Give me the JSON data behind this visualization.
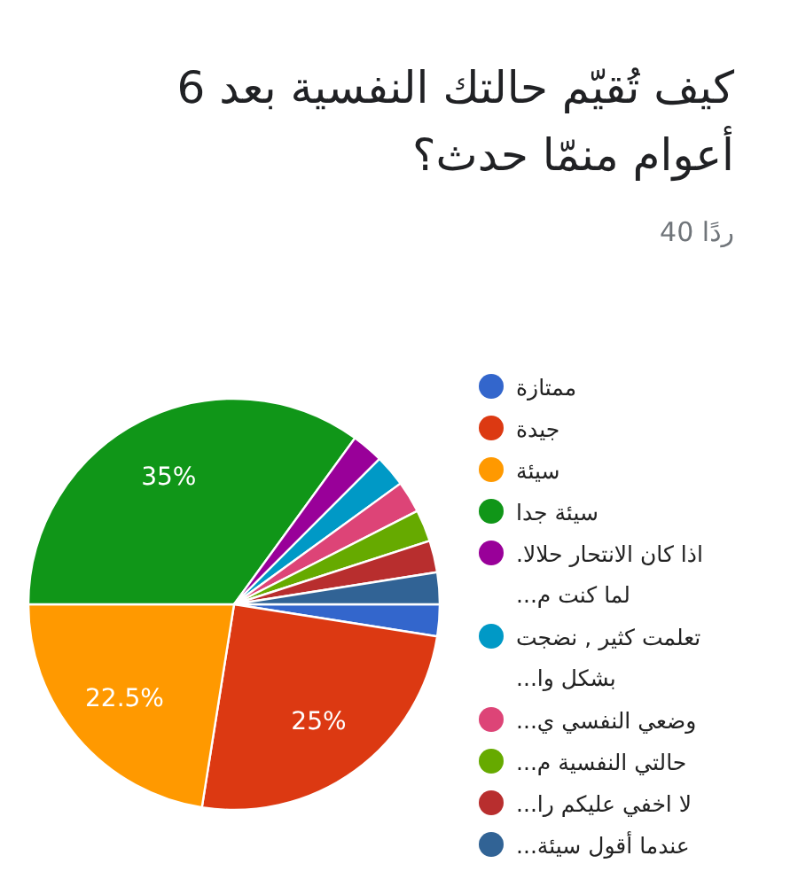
{
  "chart_data": {
    "type": "pie",
    "title": "كيف تُقيّم حالتك النفسية بعد 6 أعوام منمّا حدث؟",
    "subtitle": "40 ردًا",
    "categories": [
      "ممتازة",
      "جيدة",
      "سيئة",
      "سيئة جدا",
      "اذا كان الانتحار حلالا. لما كنت م...",
      "تعلمت كثير , نضجت بشكل وا...",
      "وضعي النفسي ي...",
      "حالتي النفسية م...",
      "لا اخفي عليكم را...",
      "عندما أقول سيئة..."
    ],
    "values": [
      2.5,
      25,
      22.5,
      35,
      2.5,
      2.5,
      2.5,
      2.5,
      2.5,
      2.5
    ],
    "colors": [
      "#3366cc",
      "#dc3912",
      "#ff9900",
      "#109618",
      "#990099",
      "#0099c6",
      "#dd4477",
      "#66aa00",
      "#b82e2e",
      "#316395"
    ],
    "value_labels": [
      null,
      "25%",
      "22.5%",
      "35%",
      null,
      null,
      null,
      null,
      null,
      null
    ],
    "legend": "right"
  }
}
